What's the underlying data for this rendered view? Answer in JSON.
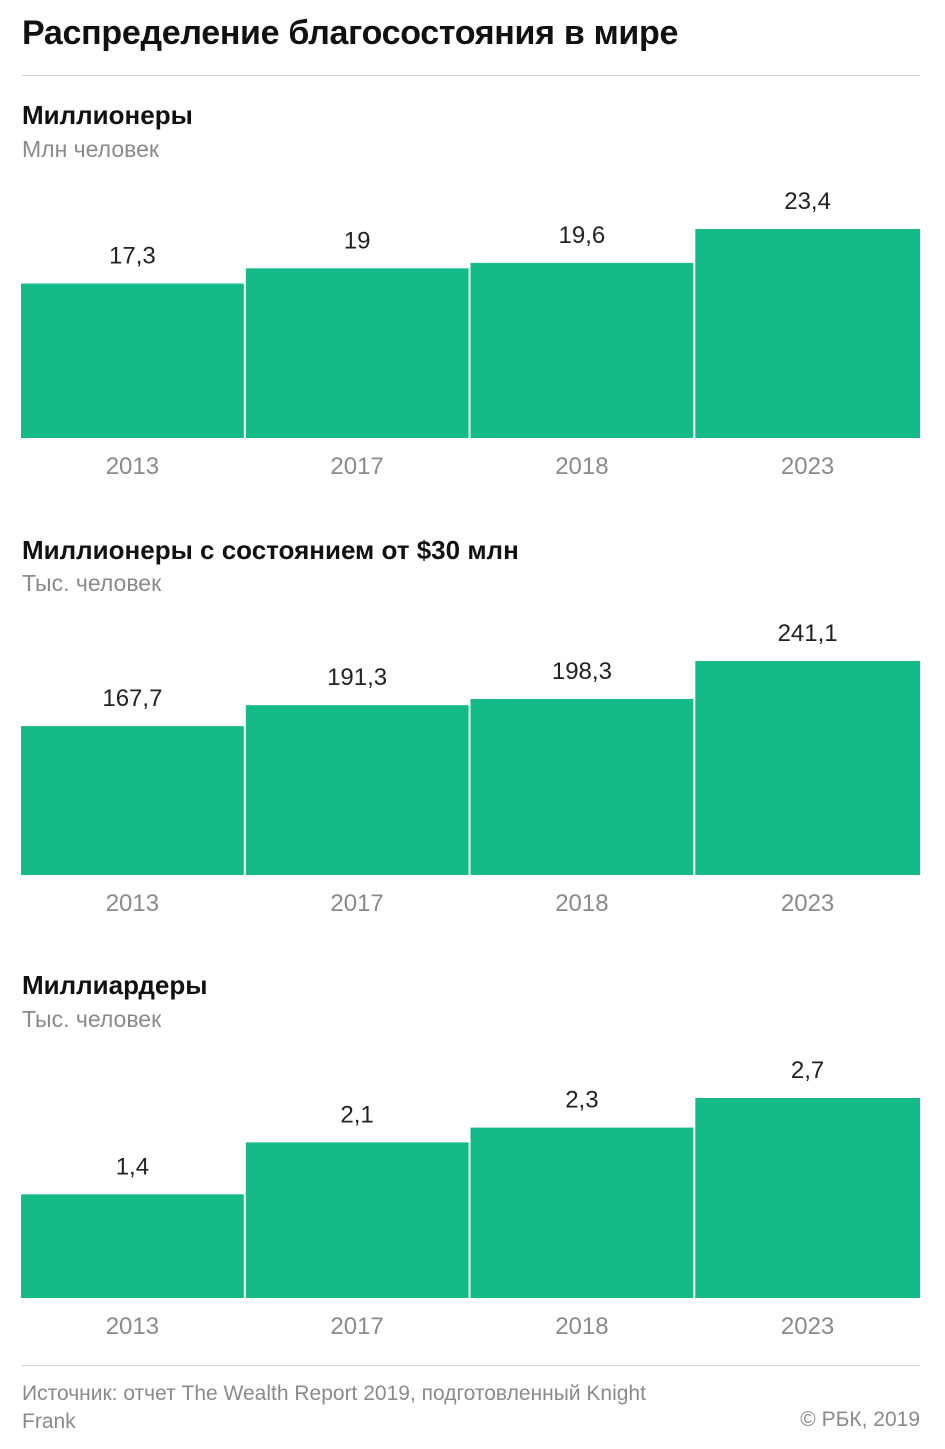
{
  "header": {
    "title": "Распределение благосостояния в мире"
  },
  "colors": {
    "bar": "#14bb88",
    "rule": "#cfcfcf",
    "muted": "#8a8a8a"
  },
  "chart_data": [
    {
      "type": "bar",
      "title": "Миллионеры",
      "subtitle": "Млн человек",
      "categories": [
        "2013",
        "2017",
        "2018",
        "2023"
      ],
      "values": [
        17.3,
        19,
        19.6,
        23.4
      ],
      "value_labels": [
        "17,3",
        "19",
        "19,6",
        "23,4"
      ],
      "ylim": [
        0,
        23.4
      ]
    },
    {
      "type": "bar",
      "title": "Миллионеры с состоянием от $30 млн",
      "subtitle": "Тыс. человек",
      "categories": [
        "2013",
        "2017",
        "2018",
        "2023"
      ],
      "values": [
        167.7,
        191.3,
        198.3,
        241.1
      ],
      "value_labels": [
        "167,7",
        "191,3",
        "198,3",
        "241,1"
      ],
      "ylim": [
        0,
        241.1
      ]
    },
    {
      "type": "bar",
      "title": "Миллиардеры",
      "subtitle": "Тыс. человек",
      "categories": [
        "2013",
        "2017",
        "2018",
        "2023"
      ],
      "values": [
        1.4,
        2.1,
        2.3,
        2.7
      ],
      "value_labels": [
        "1,4",
        "2,1",
        "2,3",
        "2,7"
      ],
      "ylim": [
        0,
        2.7
      ]
    }
  ],
  "footer": {
    "source": "Источник: отчет The Wealth Report 2019, подготовленный Knight Frank",
    "copyright": "© РБК, 2019"
  }
}
